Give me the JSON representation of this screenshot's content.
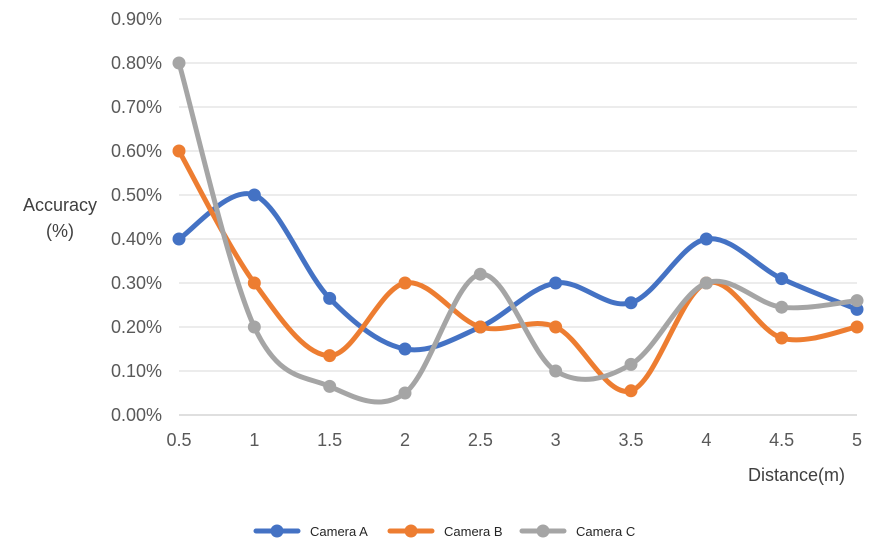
{
  "chart_data": {
    "type": "line",
    "smooth": true,
    "x": [
      0.5,
      1,
      1.5,
      2,
      2.5,
      3,
      3.5,
      4,
      4.5,
      5
    ],
    "x_tick_labels": [
      "0.5",
      "1",
      "1.5",
      "2",
      "2.5",
      "3",
      "3.5",
      "4",
      "4.5",
      "5"
    ],
    "y_tick_labels": [
      "0.00%",
      "0.10%",
      "0.20%",
      "0.30%",
      "0.40%",
      "0.50%",
      "0.60%",
      "0.70%",
      "0.80%",
      "0.90%"
    ],
    "ylim": [
      0,
      0.9
    ],
    "ylabel_line1": "Accuracy",
    "ylabel_line2": "(%)",
    "xlabel": "Distance(m)",
    "grid": true,
    "legend_position": "bottom",
    "series": [
      {
        "name": "Camera A",
        "color": "#4472C4",
        "values": [
          0.4,
          0.5,
          0.265,
          0.15,
          0.2,
          0.3,
          0.255,
          0.4,
          0.31,
          0.24
        ]
      },
      {
        "name": "Camera B",
        "color": "#ED7D31",
        "values": [
          0.6,
          0.3,
          0.135,
          0.3,
          0.2,
          0.2,
          0.055,
          0.3,
          0.175,
          0.2
        ]
      },
      {
        "name": "Camera C",
        "color": "#A5A5A5",
        "values": [
          0.8,
          0.2,
          0.065,
          0.05,
          0.32,
          0.1,
          0.115,
          0.3,
          0.245,
          0.26
        ]
      }
    ]
  }
}
